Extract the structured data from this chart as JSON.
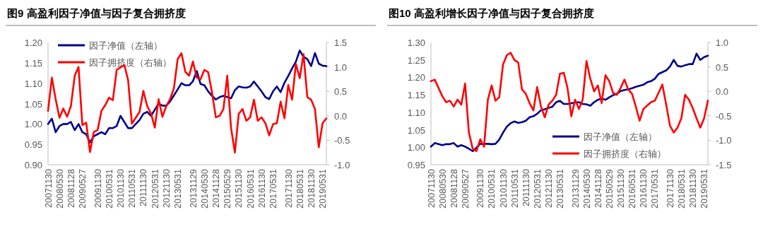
{
  "chart_data": [
    {
      "type": "line",
      "title": "图9  高盈利因子净值与因子复合拥挤度",
      "legend": "top left",
      "grid": false,
      "categories": [
        "20071130",
        null,
        null,
        "20080530",
        null,
        null,
        "20081128",
        null,
        null,
        "20090527",
        null,
        null,
        null,
        "20091130",
        null,
        null,
        "20100531",
        null,
        null,
        "20101130",
        null,
        null,
        "20110531",
        null,
        null,
        "20111130",
        null,
        null,
        "20120531",
        null,
        null,
        "20121130",
        null,
        null,
        "20130531",
        null,
        null,
        null,
        "20131129",
        null,
        null,
        "20140530",
        null,
        null,
        "20141128",
        null,
        null,
        "20150529",
        null,
        null,
        "20151130",
        null,
        null,
        "20160531",
        null,
        null,
        "20161130",
        null,
        null,
        "20170531",
        null,
        null,
        null,
        "20171130",
        null,
        null,
        "20180531",
        null,
        null,
        "20181130",
        null,
        null,
        "20190531",
        null
      ],
      "ylim": [
        0.9,
        1.2
      ],
      "yticks": [
        {
          "value": 0.9,
          "label": "0.90"
        },
        {
          "value": 0.95,
          "label": "0.95"
        },
        {
          "value": 1.0,
          "label": "1.00"
        },
        {
          "value": 1.05,
          "label": "1.05"
        },
        {
          "value": 1.1,
          "label": "1.10"
        },
        {
          "value": 1.15,
          "label": "1.15"
        },
        {
          "value": 1.2,
          "label": "1.20"
        }
      ],
      "y2lim": [
        -1,
        1.5
      ],
      "y2ticks": [
        {
          "value": -1,
          "label": "-1.0"
        },
        {
          "value": -0.5,
          "label": "-0.5"
        },
        {
          "value": 0,
          "label": "0.0"
        },
        {
          "value": 0.5,
          "label": "0.5"
        },
        {
          "value": 1,
          "label": "1.0"
        },
        {
          "value": 1.5,
          "label": "1.5"
        }
      ],
      "series": [
        {
          "name": "因子净值（左轴）",
          "color": "#00008b",
          "values": [
            1.0,
            1.013,
            0.98,
            0.995,
            1.0,
            1.0,
            1.005,
            0.985,
            1.0,
            0.98,
            0.975,
            0.955,
            0.97,
            0.975,
            0.98,
            0.975,
            0.99,
            0.99,
            0.995,
            1.02,
            1.005,
            0.99,
            0.99,
            1.0,
            1.01,
            1.025,
            1.03,
            1.02,
            1.035,
            1.05,
            1.045,
            1.045,
            1.055,
            1.07,
            1.085,
            1.1,
            1.095,
            1.095,
            1.105,
            1.13,
            1.098,
            1.095,
            1.08,
            1.069,
            1.06,
            1.066,
            1.069,
            1.066,
            1.063,
            1.083,
            1.092,
            1.09,
            1.089,
            1.092,
            1.104,
            1.092,
            1.08,
            1.066,
            1.061,
            1.08,
            1.092,
            1.078,
            1.101,
            1.118,
            1.136,
            1.153,
            1.18,
            1.165,
            1.159,
            1.142,
            1.174,
            1.148,
            1.143,
            1.142
          ]
        },
        {
          "name": "因子拥挤度（右轴）",
          "color": "#ff0000",
          "axis": "y2",
          "values": [
            0.1,
            0.78,
            0.34,
            -0.04,
            0.15,
            -0.02,
            0.2,
            0.82,
            1.0,
            -0.19,
            -0.14,
            -0.74,
            -0.33,
            -0.29,
            0.1,
            0.22,
            0.37,
            0.32,
            0.94,
            0.99,
            1.04,
            0.73,
            -0.16,
            -0.04,
            0.08,
            0.51,
            0.2,
            0.05,
            -0.24,
            0.34,
            -0.02,
            0.2,
            0.34,
            0.56,
            1.16,
            1.28,
            0.9,
            0.82,
            1.11,
            0.78,
            0.75,
            0.94,
            0.89,
            0.48,
            -0.03,
            0.0,
            0.14,
            0.82,
            -0.25,
            -0.75,
            0.04,
            0.14,
            -0.1,
            -0.03,
            0.33,
            -0.1,
            -0.03,
            -0.15,
            -0.4,
            -0.17,
            -0.15,
            0.29,
            -0.05,
            0.63,
            0.33,
            1.06,
            0.77,
            1.26,
            0.38,
            0.33,
            0.14,
            -0.64,
            -0.15,
            -0.05
          ]
        }
      ]
    },
    {
      "type": "line",
      "title": "图10 高盈利增长因子净值与因子复合拥挤度",
      "legend": "bottom right",
      "grid": false,
      "categories": [
        "20071130",
        null,
        null,
        "20080530",
        null,
        null,
        "20081128",
        null,
        null,
        "20090527",
        null,
        null,
        null,
        "20091130",
        null,
        null,
        "20100531",
        null,
        null,
        "20101130",
        null,
        null,
        "20110531",
        null,
        null,
        "20111130",
        null,
        null,
        "20120531",
        null,
        null,
        "20121130",
        null,
        null,
        "20130531",
        null,
        null,
        null,
        "20131129",
        null,
        null,
        "20140530",
        null,
        null,
        "20141128",
        null,
        null,
        "20150529",
        null,
        null,
        "20151130",
        null,
        null,
        "20160531",
        null,
        null,
        "20161130",
        null,
        null,
        "20170531",
        null,
        null,
        null,
        "20171130",
        null,
        null,
        "20180531",
        null,
        null,
        "20181130",
        null,
        null,
        "20190531",
        null
      ],
      "ylim": [
        0.95,
        1.3
      ],
      "yticks": [
        {
          "value": 0.95,
          "label": "0.95"
        },
        {
          "value": 1.0,
          "label": "1.00"
        },
        {
          "value": 1.05,
          "label": "1.05"
        },
        {
          "value": 1.1,
          "label": "1.10"
        },
        {
          "value": 1.15,
          "label": "1.15"
        },
        {
          "value": 1.2,
          "label": "1.20"
        },
        {
          "value": 1.25,
          "label": "1.25"
        },
        {
          "value": 1.3,
          "label": "1.30"
        }
      ],
      "y2lim": [
        -1.5,
        1
      ],
      "y2ticks": [
        {
          "value": -1.5,
          "label": "-1.5"
        },
        {
          "value": -1,
          "label": "-1.0"
        },
        {
          "value": -0.5,
          "label": "-0.5"
        },
        {
          "value": 0,
          "label": "0.0"
        },
        {
          "value": 0.5,
          "label": "0.5"
        },
        {
          "value": 1,
          "label": "1.0"
        }
      ],
      "series": [
        {
          "name": "因子净值（左轴）",
          "color": "#00008b",
          "values": [
            1.002,
            1.012,
            1.009,
            1.006,
            1.009,
            1.009,
            1.012,
            1.002,
            1.006,
            1.002,
            0.996,
            0.989,
            0.999,
            1.01,
            1.01,
            1.01,
            1.009,
            1.01,
            1.022,
            1.042,
            1.059,
            1.069,
            1.074,
            1.07,
            1.072,
            1.076,
            1.086,
            1.089,
            1.096,
            1.106,
            1.109,
            1.113,
            1.116,
            1.129,
            1.133,
            1.124,
            1.124,
            1.126,
            1.128,
            1.129,
            1.124,
            1.123,
            1.119,
            1.129,
            1.136,
            1.139,
            1.136,
            1.143,
            1.149,
            1.153,
            1.161,
            1.164,
            1.166,
            1.169,
            1.173,
            1.176,
            1.179,
            1.186,
            1.189,
            1.196,
            1.21,
            1.215,
            1.22,
            1.231,
            1.25,
            1.233,
            1.231,
            1.235,
            1.238,
            1.238,
            1.268,
            1.25,
            1.258,
            1.262
          ]
        },
        {
          "name": "因子拥挤度（右轴）",
          "color": "#ff0000",
          "axis": "y2",
          "values": [
            0.21,
            0.24,
            0.07,
            -0.1,
            -0.22,
            -0.19,
            -0.31,
            -0.17,
            -0.27,
            0.16,
            -0.84,
            -1.17,
            -1.22,
            -0.98,
            -1.13,
            -0.17,
            0.12,
            -0.19,
            -0.12,
            0.55,
            0.74,
            0.79,
            0.64,
            0.59,
            0.04,
            -0.05,
            -0.24,
            -0.39,
            0.09,
            -0.31,
            -0.53,
            -0.27,
            -0.19,
            -0.07,
            0.36,
            0.38,
            0.07,
            -0.51,
            -0.17,
            -0.36,
            -0.17,
            0.62,
            0.26,
            0.0,
            0.12,
            -0.24,
            0.33,
            0.21,
            -0.03,
            -0.07,
            0.07,
            0.24,
            0.04,
            -0.05,
            -0.31,
            -0.6,
            -0.36,
            -0.29,
            -0.22,
            -0.19,
            -0.03,
            0.14,
            -0.27,
            -0.7,
            -0.84,
            -0.74,
            -0.55,
            -0.07,
            -0.17,
            -0.34,
            -0.55,
            -0.74,
            -0.55,
            -0.19
          ]
        }
      ]
    }
  ]
}
